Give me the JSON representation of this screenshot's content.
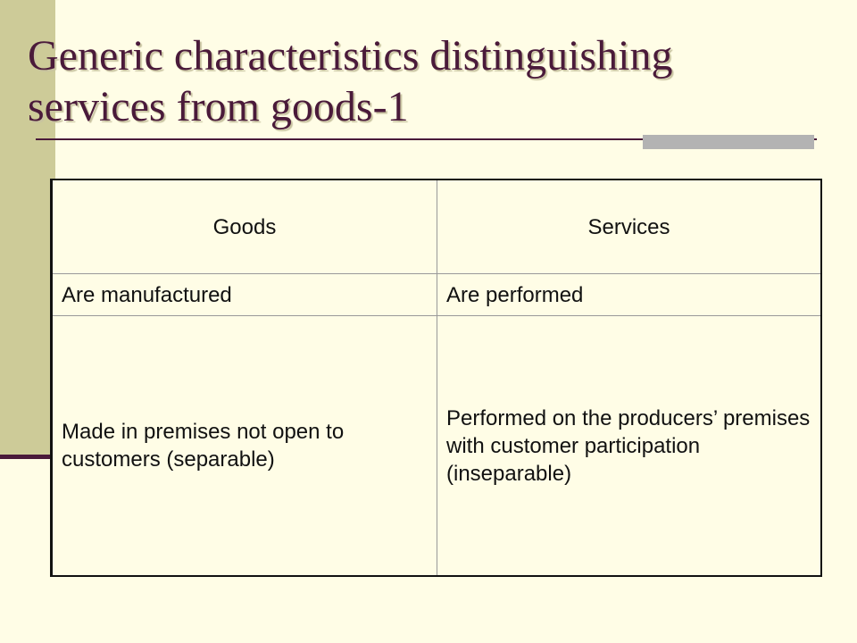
{
  "slide": {
    "title_lines": [
      "Generic characteristics distinguishing",
      "services from goods-1"
    ]
  },
  "table": {
    "headers": [
      "Goods",
      "Services"
    ],
    "rows": [
      [
        "Are manufactured",
        "Are performed"
      ],
      [
        "Made in premises not open to customers (separable)",
        "Performed on the producers’ premises with customer participation (inseparable)"
      ]
    ]
  }
}
